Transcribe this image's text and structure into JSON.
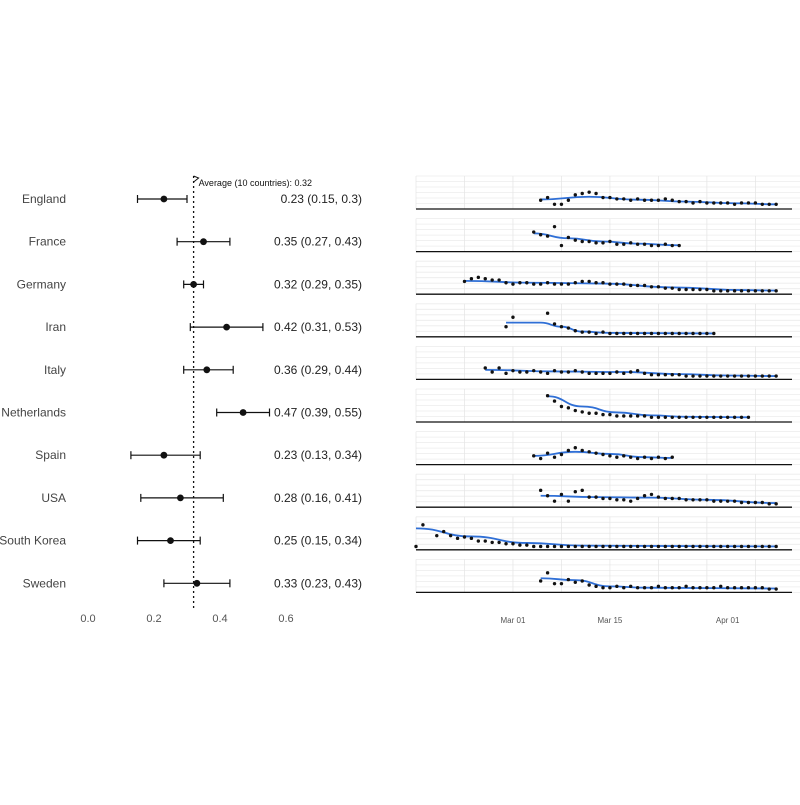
{
  "chart_data": [
    {
      "type": "forest",
      "average_label": "Average (10 countries): 0.32",
      "average_value": 0.32,
      "xlim": [
        0,
        0.6
      ],
      "x_ticks": [
        "0.0",
        "0.2",
        "0.4",
        "0.6"
      ],
      "x_tick_values": [
        0,
        0.2,
        0.4,
        0.6
      ],
      "grid": false,
      "rows": [
        {
          "country": "England",
          "estimate": 0.23,
          "lower": 0.15,
          "upper": 0.3,
          "label": "0.23 (0.15, 0.3)"
        },
        {
          "country": "France",
          "estimate": 0.35,
          "lower": 0.27,
          "upper": 0.43,
          "label": "0.35 (0.27, 0.43)"
        },
        {
          "country": "Germany",
          "estimate": 0.32,
          "lower": 0.29,
          "upper": 0.35,
          "label": "0.32 (0.29, 0.35)"
        },
        {
          "country": "Iran",
          "estimate": 0.42,
          "lower": 0.31,
          "upper": 0.53,
          "label": "0.42 (0.31, 0.53)"
        },
        {
          "country": "Italy",
          "estimate": 0.36,
          "lower": 0.29,
          "upper": 0.44,
          "label": "0.36 (0.29, 0.44)"
        },
        {
          "country": "Netherlands",
          "estimate": 0.47,
          "lower": 0.39,
          "upper": 0.55,
          "label": "0.47 (0.39, 0.55)"
        },
        {
          "country": "Spain",
          "estimate": 0.23,
          "lower": 0.13,
          "upper": 0.34,
          "label": "0.23 (0.13, 0.34)"
        },
        {
          "country": "USA",
          "estimate": 0.28,
          "lower": 0.16,
          "upper": 0.41,
          "label": "0.28 (0.16, 0.41)"
        },
        {
          "country": "South Korea",
          "estimate": 0.25,
          "lower": 0.15,
          "upper": 0.34,
          "label": "0.25 (0.15, 0.34)"
        },
        {
          "country": "Sweden",
          "estimate": 0.33,
          "lower": 0.23,
          "upper": 0.43,
          "label": "0.33 (0.23, 0.43)"
        }
      ]
    },
    {
      "type": "scatter",
      "x_ticks": [
        "Mar 01",
        "Mar 15",
        "Apr 01"
      ],
      "x_tick_values": [
        "2020-03-01",
        "2020-03-15",
        "2020-04-01"
      ],
      "xlim": [
        "2020-02-16",
        "2020-04-10"
      ],
      "ylim": [
        0,
        1
      ],
      "grid": true,
      "smoothed_line_color": "#2f6fd6",
      "point_color": "#111111",
      "series": [
        {
          "country": "England",
          "start": "2020-03-05",
          "points": [
            0.25,
            0.35,
            0.1,
            0.1,
            0.25,
            0.45,
            0.5,
            0.55,
            0.5,
            0.35,
            0.35,
            0.3,
            0.3,
            0.25,
            0.3,
            0.25,
            0.25,
            0.25,
            0.3,
            0.25,
            0.2,
            0.2,
            0.15,
            0.2,
            0.15,
            0.15,
            0.15,
            0.15,
            0.1,
            0.15,
            0.15,
            0.15,
            0.1,
            0.1,
            0.1
          ],
          "smooth": [
            [
              0,
              0.28
            ],
            [
              7,
              0.38
            ],
            [
              14,
              0.27
            ],
            [
              21,
              0.2
            ],
            [
              28,
              0.14
            ],
            [
              34,
              0.1
            ]
          ]
        },
        {
          "country": "France",
          "start": "2020-03-04",
          "points": [
            0.65,
            0.55,
            0.5,
            0.85,
            0.15,
            0.45,
            0.35,
            0.3,
            0.3,
            0.25,
            0.25,
            0.3,
            0.2,
            0.2,
            0.25,
            0.2,
            0.2,
            0.15,
            0.15,
            0.2,
            0.15,
            0.15
          ],
          "smooth": [
            [
              0,
              0.6
            ],
            [
              5,
              0.42
            ],
            [
              10,
              0.3
            ],
            [
              15,
              0.22
            ],
            [
              21,
              0.16
            ]
          ]
        },
        {
          "country": "Germany",
          "start": "2020-02-23",
          "points": [
            0.4,
            0.5,
            0.55,
            0.5,
            0.45,
            0.45,
            0.35,
            0.3,
            0.35,
            0.35,
            0.3,
            0.3,
            0.35,
            0.3,
            0.3,
            0.3,
            0.35,
            0.4,
            0.4,
            0.35,
            0.35,
            0.3,
            0.3,
            0.3,
            0.25,
            0.25,
            0.25,
            0.2,
            0.2,
            0.15,
            0.15,
            0.1,
            0.1,
            0.1,
            0.1,
            0.1,
            0.05,
            0.05,
            0.05,
            0.05,
            0.05,
            0.05,
            0.05,
            0.05,
            0.05,
            0.05
          ],
          "smooth": [
            [
              0,
              0.42
            ],
            [
              10,
              0.35
            ],
            [
              20,
              0.32
            ],
            [
              30,
              0.18
            ],
            [
              40,
              0.08
            ],
            [
              45,
              0.06
            ]
          ]
        },
        {
          "country": "Iran",
          "start": "2020-02-29",
          "points": [
            0.3,
            0.65,
            null,
            null,
            null,
            null,
            0.8,
            0.4,
            0.3,
            0.25,
            0.15,
            0.1,
            0.1,
            0.05,
            0.1,
            0.05,
            0.05,
            0.05,
            0.05,
            0.05,
            0.05,
            0.05,
            0.05,
            0.05,
            0.05,
            0.05,
            0.05,
            0.05,
            0.05,
            0.05,
            0.05
          ],
          "smooth": [
            [
              0,
              0.45
            ],
            [
              5,
              0.45
            ],
            [
              8,
              0.3
            ],
            [
              11,
              0.12
            ],
            [
              15,
              0.07
            ],
            [
              30,
              0.05
            ]
          ]
        },
        {
          "country": "Italy",
          "start": "2020-02-26",
          "points": [
            0.35,
            0.2,
            0.35,
            0.15,
            0.25,
            0.2,
            0.2,
            0.25,
            0.2,
            0.15,
            0.25,
            0.2,
            0.2,
            0.25,
            0.2,
            0.15,
            0.15,
            0.15,
            0.15,
            0.2,
            0.15,
            0.2,
            0.25,
            0.15,
            0.1,
            0.1,
            0.1,
            0.1,
            0.1,
            0.05,
            0.05,
            0.05,
            0.05,
            0.05,
            0.05,
            0.05,
            0.05,
            0.05,
            0.05,
            0.05,
            0.05,
            0.05,
            0.05
          ],
          "smooth": [
            [
              0,
              0.28
            ],
            [
              10,
              0.22
            ],
            [
              20,
              0.2
            ],
            [
              28,
              0.12
            ],
            [
              35,
              0.07
            ],
            [
              42,
              0.05
            ]
          ]
        },
        {
          "country": "Netherlands",
          "start": "2020-03-06",
          "points": [
            0.9,
            0.7,
            0.5,
            0.45,
            0.35,
            0.3,
            0.25,
            0.25,
            0.2,
            0.2,
            0.15,
            0.15,
            0.15,
            0.15,
            0.15,
            0.1,
            0.1,
            0.1,
            0.1,
            0.1,
            0.1,
            0.1,
            0.1,
            0.1,
            0.1,
            0.1,
            0.1,
            0.1,
            0.1,
            0.1
          ],
          "smooth": [
            [
              0,
              0.88
            ],
            [
              5,
              0.5
            ],
            [
              10,
              0.28
            ],
            [
              15,
              0.17
            ],
            [
              20,
              0.12
            ],
            [
              29,
              0.1
            ]
          ]
        },
        {
          "country": "Spain",
          "start": "2020-03-04",
          "points": [
            0.25,
            0.15,
            0.35,
            0.2,
            0.3,
            0.45,
            0.55,
            0.45,
            0.4,
            0.35,
            0.3,
            0.25,
            0.2,
            0.25,
            0.2,
            0.15,
            0.2,
            0.15,
            0.2,
            0.15,
            0.2
          ],
          "smooth": [
            [
              0,
              0.25
            ],
            [
              6,
              0.4
            ],
            [
              11,
              0.32
            ],
            [
              16,
              0.2
            ],
            [
              20,
              0.17
            ]
          ]
        },
        {
          "country": "USA",
          "start": "2020-03-05",
          "points": [
            0.55,
            0.35,
            0.15,
            0.4,
            0.15,
            0.5,
            0.55,
            0.3,
            0.3,
            0.25,
            0.25,
            0.2,
            0.2,
            0.15,
            0.25,
            0.35,
            0.4,
            0.3,
            0.25,
            0.25,
            0.25,
            0.2,
            0.2,
            0.2,
            0.2,
            0.15,
            0.15,
            0.15,
            0.15,
            0.1,
            0.1,
            0.1,
            0.1,
            0.05,
            0.05
          ],
          "smooth": [
            [
              0,
              0.35
            ],
            [
              8,
              0.3
            ],
            [
              16,
              0.28
            ],
            [
              24,
              0.2
            ],
            [
              34,
              0.08
            ]
          ]
        },
        {
          "country": "South Korea",
          "start": "2020-02-16",
          "points": [
            0.05,
            0.85,
            null,
            0.45,
            0.6,
            0.45,
            0.35,
            0.4,
            0.35,
            0.25,
            0.25,
            0.2,
            0.2,
            0.15,
            0.15,
            0.1,
            0.1,
            0.05,
            0.05,
            0.05,
            0.05,
            0.05,
            0.05,
            0.05,
            0.05,
            0.05,
            0.05,
            0.05,
            0.05,
            0.05,
            0.05,
            0.05,
            0.05,
            0.05,
            0.05,
            0.05,
            0.05,
            0.05,
            0.05,
            0.05,
            0.05,
            0.05,
            0.05,
            0.05,
            0.05,
            0.05,
            0.05,
            0.05,
            0.05,
            0.05,
            0.05,
            0.05,
            0.05
          ],
          "smooth": [
            [
              0,
              0.72
            ],
            [
              8,
              0.42
            ],
            [
              16,
              0.18
            ],
            [
              24,
              0.08
            ],
            [
              52,
              0.05
            ]
          ]
        },
        {
          "country": "Sweden",
          "start": "2020-03-05",
          "points": [
            0.35,
            0.65,
            0.25,
            0.25,
            0.4,
            0.3,
            0.35,
            0.2,
            0.15,
            0.1,
            0.1,
            0.15,
            0.1,
            0.15,
            0.1,
            0.1,
            0.1,
            0.15,
            0.1,
            0.1,
            0.1,
            0.15,
            0.1,
            0.1,
            0.1,
            0.1,
            0.15,
            0.1,
            0.1,
            0.1,
            0.1,
            0.1,
            0.1,
            0.05,
            0.05
          ],
          "smooth": [
            [
              0,
              0.45
            ],
            [
              5,
              0.38
            ],
            [
              10,
              0.15
            ],
            [
              15,
              0.1
            ],
            [
              34,
              0.07
            ]
          ]
        }
      ]
    }
  ]
}
